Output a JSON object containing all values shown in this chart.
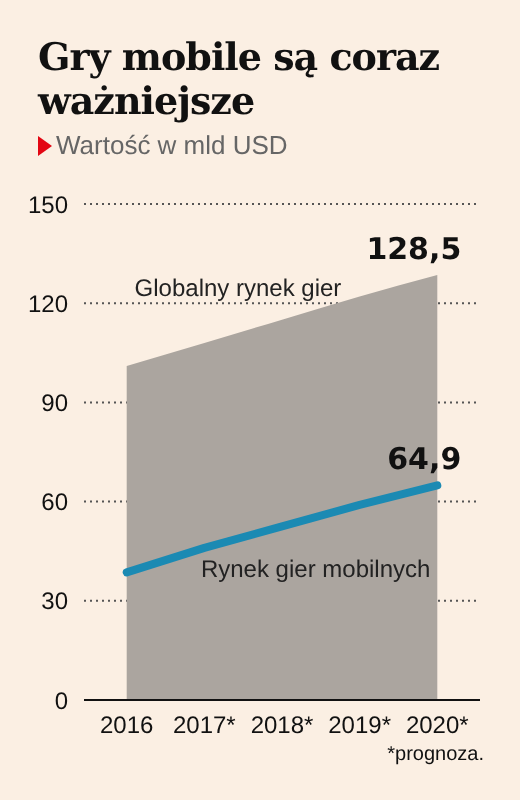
{
  "chart_data": {
    "type": "area",
    "title": "Gry mobile są coraz ważniejsze",
    "subtitle": "Wartość w mld USD",
    "categories": [
      "2016",
      "2017*",
      "2018*",
      "2019*",
      "2020*"
    ],
    "series": [
      {
        "name": "Globalny rynek gier",
        "color": "#aba59f",
        "values": [
          101,
          108,
          115,
          122,
          128.5
        ],
        "value_labels": [
          null,
          null,
          null,
          null,
          "128,5"
        ]
      },
      {
        "type": "line",
        "name": "Rynek gier mobilnych",
        "color": "#1b8ab3",
        "values": [
          38.6,
          46,
          52.5,
          59,
          64.9
        ],
        "value_labels": [
          null,
          null,
          null,
          null,
          "64,9"
        ]
      }
    ],
    "ylim": [
      0,
      150
    ],
    "yticks": [
      0,
      30,
      60,
      90,
      120,
      150
    ],
    "grid": "y",
    "annotations": [
      "*prognoza."
    ]
  }
}
